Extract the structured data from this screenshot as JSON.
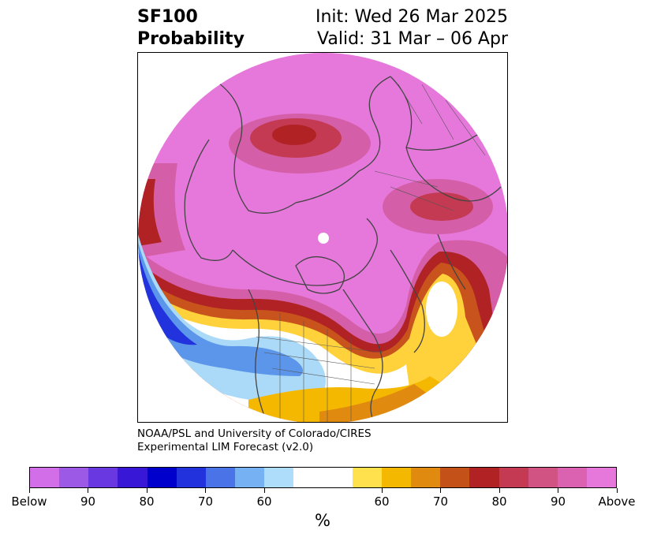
{
  "title": {
    "line1": "SF100",
    "line2": "Probability",
    "init": "Init: Wed 26 Mar 2025",
    "valid": "Valid: 31 Mar – 06 Apr"
  },
  "credit": {
    "line1": "NOAA/PSL and University of Colorado/CIRES",
    "line2": "Experimental LIM Forecast (v2.0)"
  },
  "colorbar": {
    "unit": "%",
    "colors": [
      "#d36ee9",
      "#9b59e6",
      "#6a38e0",
      "#3818d6",
      "#0000cc",
      "#2233dd",
      "#4b73e8",
      "#76b1f4",
      "#aedcfb",
      "#ffffff",
      "#ffffff",
      "#ffe04d",
      "#f4b800",
      "#e08a10",
      "#c45218",
      "#b02224",
      "#c43a52",
      "#d05383",
      "#da62b0",
      "#e578da"
    ],
    "tick_labels": [
      "Below",
      "90",
      "80",
      "70",
      "60",
      "60",
      "70",
      "80",
      "90",
      "Above"
    ]
  },
  "map": {
    "projection": "north-polar-stereographic",
    "field": "SF100 tercile probability",
    "colors": {
      "above_max": "#e678db",
      "above_90": "#d45fa8",
      "above_80": "#b22226",
      "above_70": "#c8531c",
      "above_60": "#ffd23c",
      "near": "#ffffff",
      "below_60": "#aadaf8",
      "below_70": "#5c96ea",
      "below_80": "#2233dd",
      "coast": "#444444"
    }
  }
}
